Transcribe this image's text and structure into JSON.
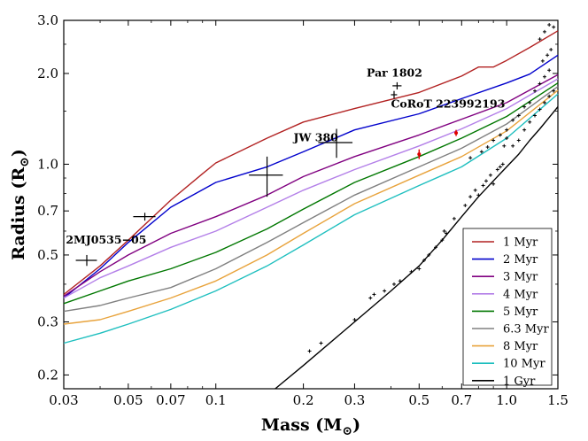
{
  "chart_data": {
    "type": "line",
    "xscale": "log",
    "yscale": "log",
    "xlim": [
      0.03,
      1.5
    ],
    "ylim": [
      0.18,
      3.0
    ],
    "xlabel": "Mass",
    "xlabel_unit": "(M",
    "xlabel_end": ")",
    "ylabel": "Radius",
    "ylabel_unit": "(R",
    "ylabel_end": ")",
    "solar_symbol": "⊙",
    "x_ticks": [
      {
        "value": 0.03,
        "label": "0.03"
      },
      {
        "value": 0.05,
        "label": "0.05"
      },
      {
        "value": 0.07,
        "label": "0.07"
      },
      {
        "value": 0.1,
        "label": "0.1"
      },
      {
        "value": 0.2,
        "label": "0.2"
      },
      {
        "value": 0.3,
        "label": "0.3"
      },
      {
        "value": 0.5,
        "label": "0.5"
      },
      {
        "value": 0.7,
        "label": "0.7"
      },
      {
        "value": 1.0,
        "label": "1.0"
      },
      {
        "value": 1.5,
        "label": "1.5"
      }
    ],
    "y_ticks": [
      {
        "value": 0.2,
        "label": "0.2"
      },
      {
        "value": 0.3,
        "label": "0.3"
      },
      {
        "value": 0.5,
        "label": "0.5"
      },
      {
        "value": 0.7,
        "label": "0.7"
      },
      {
        "value": 1.0,
        "label": "1.0"
      },
      {
        "value": 2.0,
        "label": "2.0"
      },
      {
        "value": 3.0,
        "label": "3.0"
      }
    ],
    "legend_position": "lower-right",
    "series": [
      {
        "name": "1 Myr",
        "color": "#b22222",
        "x": [
          0.03,
          0.04,
          0.05,
          0.07,
          0.09,
          0.1,
          0.15,
          0.2,
          0.3,
          0.5,
          0.7,
          0.8,
          0.9,
          1.0,
          1.2,
          1.5
        ],
        "y": [
          0.37,
          0.46,
          0.56,
          0.76,
          0.93,
          1.01,
          1.22,
          1.38,
          1.53,
          1.73,
          1.96,
          2.1,
          2.1,
          2.21,
          2.44,
          2.77
        ]
      },
      {
        "name": "2 Myr",
        "color": "#0000cc",
        "x": [
          0.03,
          0.04,
          0.05,
          0.07,
          0.1,
          0.15,
          0.2,
          0.3,
          0.5,
          0.7,
          1.0,
          1.2,
          1.5
        ],
        "y": [
          0.36,
          0.45,
          0.55,
          0.72,
          0.87,
          0.98,
          1.1,
          1.3,
          1.47,
          1.65,
          1.86,
          1.99,
          2.3
        ]
      },
      {
        "name": "3 Myr",
        "color": "#800080",
        "x": [
          0.03,
          0.04,
          0.05,
          0.07,
          0.1,
          0.15,
          0.2,
          0.3,
          0.5,
          0.7,
          1.0,
          1.5
        ],
        "y": [
          0.365,
          0.44,
          0.5,
          0.59,
          0.67,
          0.79,
          0.91,
          1.06,
          1.25,
          1.41,
          1.6,
          1.98
        ]
      },
      {
        "name": "4 Myr",
        "color": "#b37fe8",
        "x": [
          0.03,
          0.04,
          0.05,
          0.07,
          0.1,
          0.15,
          0.2,
          0.3,
          0.5,
          0.7,
          1.0,
          1.5
        ],
        "y": [
          0.36,
          0.42,
          0.46,
          0.53,
          0.6,
          0.72,
          0.82,
          0.96,
          1.15,
          1.31,
          1.53,
          1.92
        ]
      },
      {
        "name": "5 Myr",
        "color": "#007700",
        "x": [
          0.03,
          0.04,
          0.05,
          0.07,
          0.1,
          0.15,
          0.2,
          0.3,
          0.5,
          0.7,
          1.0,
          1.5
        ],
        "y": [
          0.345,
          0.38,
          0.41,
          0.45,
          0.51,
          0.61,
          0.71,
          0.87,
          1.06,
          1.22,
          1.44,
          1.86
        ]
      },
      {
        "name": "6.3 Myr",
        "color": "#808080",
        "x": [
          0.03,
          0.04,
          0.05,
          0.07,
          0.1,
          0.15,
          0.2,
          0.3,
          0.5,
          0.7,
          1.0,
          1.5
        ],
        "y": [
          0.325,
          0.34,
          0.36,
          0.39,
          0.45,
          0.55,
          0.64,
          0.79,
          0.98,
          1.13,
          1.36,
          1.81
        ]
      },
      {
        "name": "8 Myr",
        "color": "#e8a33c",
        "x": [
          0.03,
          0.04,
          0.05,
          0.07,
          0.1,
          0.15,
          0.2,
          0.3,
          0.5,
          0.7,
          1.0,
          1.5
        ],
        "y": [
          0.295,
          0.305,
          0.325,
          0.36,
          0.41,
          0.5,
          0.59,
          0.74,
          0.92,
          1.06,
          1.29,
          1.76
        ]
      },
      {
        "name": "10 Myr",
        "color": "#1fbfbf",
        "x": [
          0.03,
          0.04,
          0.05,
          0.07,
          0.1,
          0.15,
          0.2,
          0.3,
          0.5,
          0.7,
          1.0,
          1.5
        ],
        "y": [
          0.255,
          0.275,
          0.295,
          0.33,
          0.38,
          0.46,
          0.54,
          0.68,
          0.85,
          0.98,
          1.22,
          1.71
        ]
      },
      {
        "name": "1 Gyr",
        "color": "#000000",
        "x": [
          0.16,
          0.2,
          0.3,
          0.4,
          0.5,
          0.6,
          0.7,
          0.8,
          0.9,
          1.0,
          1.1,
          1.2,
          1.3,
          1.4,
          1.5
        ],
        "y": [
          0.18,
          0.215,
          0.3,
          0.38,
          0.46,
          0.56,
          0.67,
          0.78,
          0.88,
          0.98,
          1.08,
          1.2,
          1.31,
          1.43,
          1.55
        ]
      }
    ],
    "measured_points": [
      {
        "x": 0.036,
        "y": 0.48,
        "xerr": 0.003,
        "yerr": 0.02
      },
      {
        "x": 0.057,
        "y": 0.67,
        "xerr": 0.005,
        "yerr": 0.02
      },
      {
        "x": 0.15,
        "y": 0.92,
        "xerr": 0.02,
        "yerr": 0.14
      },
      {
        "x": 0.26,
        "y": 1.18,
        "xerr": 0.035,
        "yerr": 0.13
      },
      {
        "x": 0.41,
        "y": 1.7,
        "xerr": 0.01,
        "yerr": 0.05
      },
      {
        "x": 0.42,
        "y": 1.82,
        "xerr": 0.015,
        "yerr": 0.05
      }
    ],
    "highlighted_points": [
      {
        "x": 0.5,
        "y": 1.08,
        "yerr": 0.04
      },
      {
        "x": 0.67,
        "y": 1.27,
        "yerr": 0.03
      }
    ],
    "field_stars": [
      {
        "x": 0.21,
        "y": 0.24
      },
      {
        "x": 0.23,
        "y": 0.255
      },
      {
        "x": 0.3,
        "y": 0.305
      },
      {
        "x": 0.34,
        "y": 0.36
      },
      {
        "x": 0.35,
        "y": 0.37
      },
      {
        "x": 0.38,
        "y": 0.38
      },
      {
        "x": 0.41,
        "y": 0.4
      },
      {
        "x": 0.43,
        "y": 0.41
      },
      {
        "x": 0.47,
        "y": 0.44
      },
      {
        "x": 0.5,
        "y": 0.45
      },
      {
        "x": 0.52,
        "y": 0.48
      },
      {
        "x": 0.54,
        "y": 0.5
      },
      {
        "x": 0.57,
        "y": 0.53
      },
      {
        "x": 0.6,
        "y": 0.56
      },
      {
        "x": 0.61,
        "y": 0.6
      },
      {
        "x": 0.62,
        "y": 0.59
      },
      {
        "x": 0.66,
        "y": 0.66
      },
      {
        "x": 0.72,
        "y": 0.73
      },
      {
        "x": 0.75,
        "y": 0.78
      },
      {
        "x": 0.78,
        "y": 0.82
      },
      {
        "x": 0.8,
        "y": 0.79
      },
      {
        "x": 0.83,
        "y": 0.85
      },
      {
        "x": 0.85,
        "y": 0.88
      },
      {
        "x": 0.88,
        "y": 0.92
      },
      {
        "x": 0.9,
        "y": 0.86
      },
      {
        "x": 0.93,
        "y": 0.96
      },
      {
        "x": 0.95,
        "y": 0.98
      },
      {
        "x": 0.97,
        "y": 1.0
      },
      {
        "x": 0.75,
        "y": 1.05
      },
      {
        "x": 0.82,
        "y": 1.1
      },
      {
        "x": 0.86,
        "y": 1.14
      },
      {
        "x": 0.9,
        "y": 1.2
      },
      {
        "x": 0.95,
        "y": 1.25
      },
      {
        "x": 1.0,
        "y": 1.3
      },
      {
        "x": 1.05,
        "y": 1.15
      },
      {
        "x": 1.1,
        "y": 1.2
      },
      {
        "x": 1.15,
        "y": 1.3
      },
      {
        "x": 1.2,
        "y": 1.38
      },
      {
        "x": 1.25,
        "y": 1.45
      },
      {
        "x": 1.3,
        "y": 1.52
      },
      {
        "x": 1.35,
        "y": 1.6
      },
      {
        "x": 1.4,
        "y": 1.68
      },
      {
        "x": 1.45,
        "y": 1.75
      },
      {
        "x": 1.2,
        "y": 1.6
      },
      {
        "x": 1.25,
        "y": 1.75
      },
      {
        "x": 1.3,
        "y": 1.85
      },
      {
        "x": 1.35,
        "y": 1.95
      },
      {
        "x": 1.4,
        "y": 2.05
      },
      {
        "x": 1.33,
        "y": 2.2
      },
      {
        "x": 1.38,
        "y": 2.3
      },
      {
        "x": 1.42,
        "y": 2.4
      },
      {
        "x": 1.3,
        "y": 2.6
      },
      {
        "x": 1.35,
        "y": 2.75
      },
      {
        "x": 1.4,
        "y": 2.9
      },
      {
        "x": 1.45,
        "y": 2.85
      },
      {
        "x": 1.1,
        "y": 1.45
      },
      {
        "x": 1.15,
        "y": 1.55
      },
      {
        "x": 1.05,
        "y": 1.4
      },
      {
        "x": 1.0,
        "y": 1.22
      },
      {
        "x": 0.98,
        "y": 1.15
      }
    ],
    "annotations": [
      {
        "text": "2MJ0535−05",
        "x": 0.0305,
        "y": 0.545
      },
      {
        "text": "Par 1802",
        "x": 0.33,
        "y": 1.95
      },
      {
        "text": "CoRoT 223992193",
        "x": 0.4,
        "y": 1.54
      },
      {
        "text": "JW 380",
        "x": 0.185,
        "y": 1.19
      }
    ]
  }
}
